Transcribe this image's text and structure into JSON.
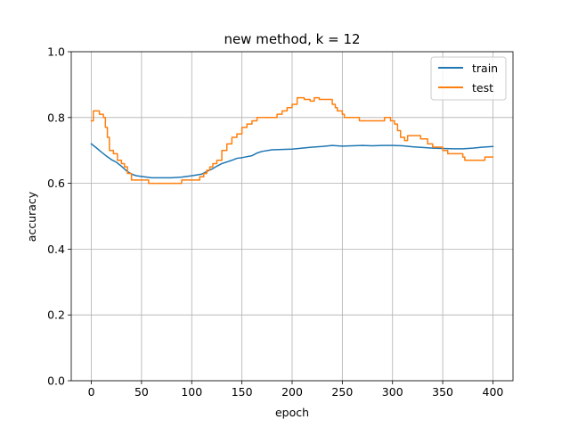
{
  "chart_data": {
    "type": "line",
    "title": "new method, k = 12",
    "xlabel": "epoch",
    "ylabel": "accuracy",
    "xlim": [
      -20,
      420
    ],
    "ylim": [
      0.0,
      1.0
    ],
    "xticks": [
      0,
      50,
      100,
      150,
      200,
      250,
      300,
      350,
      400
    ],
    "xtick_labels": [
      "0",
      "50",
      "100",
      "150",
      "200",
      "250",
      "300",
      "350",
      "400"
    ],
    "yticks": [
      0.0,
      0.2,
      0.4,
      0.6,
      0.8,
      1.0
    ],
    "ytick_labels": [
      "0.0",
      "0.2",
      "0.4",
      "0.6",
      "0.8",
      "1.0"
    ],
    "grid": true,
    "legend": "upper right",
    "series": [
      {
        "name": "train",
        "color": "#1f77b4",
        "style": "line",
        "points": [
          [
            0,
            0.72
          ],
          [
            5,
            0.708
          ],
          [
            10,
            0.695
          ],
          [
            15,
            0.683
          ],
          [
            20,
            0.672
          ],
          [
            25,
            0.664
          ],
          [
            30,
            0.652
          ],
          [
            35,
            0.638
          ],
          [
            40,
            0.628
          ],
          [
            45,
            0.623
          ],
          [
            50,
            0.621
          ],
          [
            55,
            0.619
          ],
          [
            60,
            0.617
          ],
          [
            70,
            0.617
          ],
          [
            80,
            0.617
          ],
          [
            90,
            0.619
          ],
          [
            100,
            0.623
          ],
          [
            110,
            0.628
          ],
          [
            115,
            0.636
          ],
          [
            120,
            0.643
          ],
          [
            125,
            0.652
          ],
          [
            130,
            0.66
          ],
          [
            140,
            0.67
          ],
          [
            145,
            0.676
          ],
          [
            150,
            0.678
          ],
          [
            160,
            0.684
          ],
          [
            165,
            0.692
          ],
          [
            170,
            0.697
          ],
          [
            180,
            0.702
          ],
          [
            190,
            0.703
          ],
          [
            200,
            0.704
          ],
          [
            210,
            0.707
          ],
          [
            220,
            0.71
          ],
          [
            230,
            0.712
          ],
          [
            240,
            0.715
          ],
          [
            250,
            0.713
          ],
          [
            260,
            0.714
          ],
          [
            270,
            0.715
          ],
          [
            280,
            0.714
          ],
          [
            290,
            0.715
          ],
          [
            300,
            0.715
          ],
          [
            310,
            0.714
          ],
          [
            320,
            0.711
          ],
          [
            330,
            0.709
          ],
          [
            340,
            0.707
          ],
          [
            350,
            0.706
          ],
          [
            360,
            0.705
          ],
          [
            370,
            0.705
          ],
          [
            380,
            0.707
          ],
          [
            390,
            0.71
          ],
          [
            400,
            0.712
          ]
        ]
      },
      {
        "name": "test",
        "color": "#ff7f0e",
        "style": "step",
        "points": [
          [
            0,
            0.79
          ],
          [
            2,
            0.82
          ],
          [
            6,
            0.82
          ],
          [
            8,
            0.81
          ],
          [
            12,
            0.8
          ],
          [
            14,
            0.77
          ],
          [
            16,
            0.74
          ],
          [
            18,
            0.7
          ],
          [
            22,
            0.69
          ],
          [
            26,
            0.67
          ],
          [
            30,
            0.66
          ],
          [
            33,
            0.65
          ],
          [
            36,
            0.63
          ],
          [
            40,
            0.61
          ],
          [
            55,
            0.61
          ],
          [
            57,
            0.6
          ],
          [
            88,
            0.6
          ],
          [
            90,
            0.61
          ],
          [
            105,
            0.61
          ],
          [
            108,
            0.62
          ],
          [
            112,
            0.63
          ],
          [
            115,
            0.64
          ],
          [
            118,
            0.65
          ],
          [
            121,
            0.66
          ],
          [
            125,
            0.67
          ],
          [
            130,
            0.7
          ],
          [
            135,
            0.72
          ],
          [
            140,
            0.74
          ],
          [
            145,
            0.75
          ],
          [
            150,
            0.77
          ],
          [
            155,
            0.78
          ],
          [
            160,
            0.79
          ],
          [
            165,
            0.8
          ],
          [
            185,
            0.81
          ],
          [
            190,
            0.82
          ],
          [
            195,
            0.83
          ],
          [
            200,
            0.84
          ],
          [
            205,
            0.86
          ],
          [
            210,
            0.86
          ],
          [
            212,
            0.855
          ],
          [
            218,
            0.85
          ],
          [
            222,
            0.86
          ],
          [
            227,
            0.855
          ],
          [
            240,
            0.84
          ],
          [
            243,
            0.83
          ],
          [
            245,
            0.82
          ],
          [
            250,
            0.81
          ],
          [
            252,
            0.8
          ],
          [
            265,
            0.8
          ],
          [
            267,
            0.79
          ],
          [
            290,
            0.79
          ],
          [
            292,
            0.8
          ],
          [
            298,
            0.79
          ],
          [
            302,
            0.78
          ],
          [
            305,
            0.76
          ],
          [
            308,
            0.74
          ],
          [
            312,
            0.73
          ],
          [
            315,
            0.745
          ],
          [
            325,
            0.745
          ],
          [
            328,
            0.735
          ],
          [
            335,
            0.72
          ],
          [
            340,
            0.71
          ],
          [
            345,
            0.71
          ],
          [
            350,
            0.7
          ],
          [
            355,
            0.69
          ],
          [
            370,
            0.68
          ],
          [
            372,
            0.67
          ],
          [
            390,
            0.67
          ],
          [
            392,
            0.68
          ],
          [
            400,
            0.68
          ]
        ]
      }
    ]
  }
}
